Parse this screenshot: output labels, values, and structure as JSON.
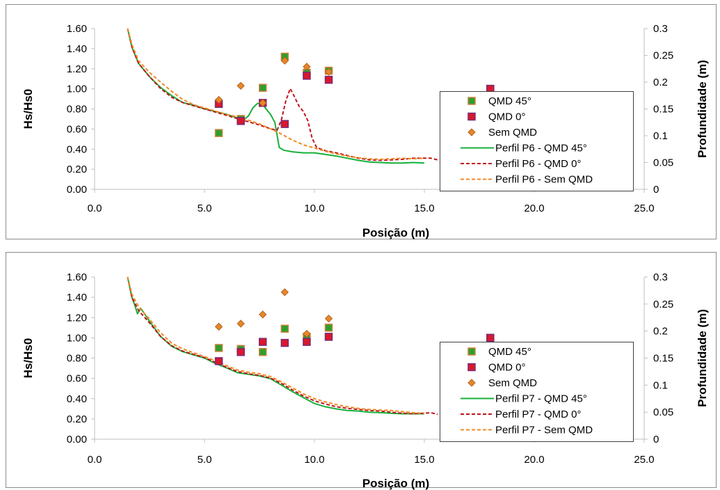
{
  "chart_data": [
    {
      "type": "scatter",
      "title": "",
      "xlabel": "Posição (m)",
      "ylabel": "Hs/Hs0",
      "y2label": "Profundidade (m)",
      "xlim": [
        0,
        25
      ],
      "ylim": [
        0,
        1.6
      ],
      "y2lim": [
        0,
        0.3
      ],
      "x_ticks": [
        "0.0",
        "5.0",
        "10.0",
        "15.0",
        "20.0",
        "25.0"
      ],
      "y_ticks": [
        "0.00",
        "0.20",
        "0.40",
        "0.60",
        "0.80",
        "1.00",
        "1.20",
        "1.40",
        "1.60"
      ],
      "y2_ticks": [
        "0",
        "0.05",
        "0.1",
        "0.15",
        "0.2",
        "0.25",
        "0.3"
      ],
      "grid": false,
      "legend_position": "right",
      "series": [
        {
          "name": "QMD 45°",
          "kind": "marker",
          "marker": "square",
          "color": "#2e9e2e",
          "edge": "#c9843a",
          "x": [
            5.65,
            6.65,
            7.65,
            8.65,
            9.65,
            10.65,
            18.0
          ],
          "y": [
            0.56,
            0.7,
            1.01,
            1.32,
            1.16,
            1.18,
            1.0
          ]
        },
        {
          "name": "QMD 0°",
          "kind": "marker",
          "marker": "square",
          "color": "#d9182b",
          "edge": "#7a2a78",
          "x": [
            5.65,
            6.65,
            7.65,
            8.65,
            9.65,
            10.65,
            18.0
          ],
          "y": [
            0.85,
            0.68,
            0.86,
            0.65,
            1.13,
            1.09,
            1.0
          ]
        },
        {
          "name": "Sem QMD",
          "kind": "marker",
          "marker": "diamond",
          "color": "#e8862a",
          "edge": "#b5651d",
          "x": [
            5.65,
            6.65,
            7.65,
            8.65,
            9.65,
            10.65
          ],
          "y": [
            0.89,
            1.03,
            0.86,
            1.28,
            1.22,
            1.17
          ]
        },
        {
          "name": "Perfil P6 - QMD 45°",
          "kind": "line",
          "dash": "solid",
          "color": "#16b03a",
          "x": [
            1.5,
            1.7,
            2.0,
            2.5,
            3.0,
            3.5,
            4.0,
            4.5,
            5.0,
            5.5,
            6.0,
            6.5,
            6.8,
            7.0,
            7.2,
            7.4,
            7.6,
            7.8,
            8.0,
            8.2,
            8.4,
            8.6,
            9.0,
            9.5,
            10.0,
            10.5,
            11.0,
            11.5,
            12.0,
            12.5,
            13.0,
            13.5,
            14.0,
            14.5,
            15.0
          ],
          "y": [
            0.3,
            0.265,
            0.235,
            0.21,
            0.19,
            0.175,
            0.162,
            0.157,
            0.15,
            0.145,
            0.14,
            0.133,
            0.13,
            0.137,
            0.152,
            0.16,
            0.161,
            0.15,
            0.14,
            0.125,
            0.078,
            0.073,
            0.07,
            0.068,
            0.068,
            0.065,
            0.062,
            0.058,
            0.054,
            0.051,
            0.05,
            0.049,
            0.049,
            0.05,
            0.049
          ]
        },
        {
          "name": "Perfil P6 - QMD 0°",
          "kind": "line",
          "dash": "dashed",
          "color": "#c0141c",
          "x": [
            1.5,
            1.7,
            2.0,
            2.5,
            3.0,
            3.5,
            4.0,
            4.5,
            5.0,
            5.5,
            6.0,
            6.5,
            7.0,
            7.5,
            8.0,
            8.3,
            8.5,
            8.7,
            8.9,
            9.1,
            9.3,
            9.5,
            9.7,
            9.9,
            10.1,
            10.5,
            11.0,
            11.5,
            12.0,
            12.5,
            13.0,
            13.5,
            14.0,
            14.5,
            15.0,
            15.3,
            15.6
          ],
          "y": [
            0.3,
            0.265,
            0.235,
            0.21,
            0.188,
            0.172,
            0.162,
            0.156,
            0.15,
            0.144,
            0.138,
            0.132,
            0.126,
            0.12,
            0.113,
            0.11,
            0.13,
            0.165,
            0.188,
            0.172,
            0.155,
            0.145,
            0.128,
            0.095,
            0.078,
            0.072,
            0.068,
            0.063,
            0.058,
            0.055,
            0.054,
            0.055,
            0.056,
            0.058,
            0.058,
            0.058,
            0.055
          ]
        },
        {
          "name": "Perfil P6 - Sem QMD",
          "kind": "line",
          "dash": "dashed",
          "color": "#f08a24",
          "x": [
            1.5,
            1.7,
            2.0,
            2.5,
            3.0,
            3.5,
            4.0,
            4.5,
            5.0,
            5.5,
            6.0,
            6.5,
            7.0,
            7.5,
            8.0,
            8.5,
            9.0,
            9.5,
            10.0,
            10.5,
            11.0,
            11.5,
            12.0,
            12.5,
            13.0,
            13.5,
            14.0,
            14.5,
            15.0
          ],
          "y": [
            0.3,
            0.27,
            0.24,
            0.218,
            0.2,
            0.183,
            0.168,
            0.158,
            0.152,
            0.146,
            0.14,
            0.135,
            0.129,
            0.122,
            0.113,
            0.103,
            0.092,
            0.083,
            0.077,
            0.071,
            0.066,
            0.062,
            0.059,
            0.057,
            0.056,
            0.057,
            0.058,
            0.057,
            0.058
          ]
        }
      ]
    },
    {
      "type": "scatter",
      "title": "",
      "xlabel": "Posição (m)",
      "ylabel": "Hs/Hs0",
      "y2label": "Profundidade (m)",
      "xlim": [
        0,
        25
      ],
      "ylim": [
        0,
        1.6
      ],
      "y2lim": [
        0,
        0.3
      ],
      "x_ticks": [
        "0.0",
        "5.0",
        "10.0",
        "15.0",
        "20.0",
        "25.0"
      ],
      "y_ticks": [
        "0.00",
        "0.20",
        "0.40",
        "0.60",
        "0.80",
        "1.00",
        "1.20",
        "1.40",
        "1.60"
      ],
      "y2_ticks": [
        "0",
        "0.05",
        "0.1",
        "0.15",
        "0.2",
        "0.25",
        "0.3"
      ],
      "grid": false,
      "legend_position": "right",
      "series": [
        {
          "name": "QMD 45°",
          "kind": "marker",
          "marker": "square",
          "color": "#2e9e2e",
          "edge": "#c9843a",
          "x": [
            5.65,
            6.65,
            7.65,
            8.65,
            9.65,
            10.65,
            18.0
          ],
          "y": [
            0.9,
            0.89,
            0.86,
            1.09,
            1.01,
            1.1,
            1.0
          ]
        },
        {
          "name": "QMD 0°",
          "kind": "marker",
          "marker": "square",
          "color": "#d9182b",
          "edge": "#7a2a78",
          "x": [
            5.65,
            6.65,
            7.65,
            8.65,
            9.65,
            10.65,
            18.0
          ],
          "y": [
            0.77,
            0.86,
            0.96,
            0.95,
            0.96,
            1.01,
            1.0
          ]
        },
        {
          "name": "Sem QMD",
          "kind": "marker",
          "marker": "diamond",
          "color": "#e8862a",
          "edge": "#b5651d",
          "x": [
            5.65,
            6.65,
            7.65,
            8.65,
            9.65,
            10.65
          ],
          "y": [
            1.11,
            1.14,
            1.23,
            1.45,
            1.04,
            1.19
          ]
        },
        {
          "name": "Perfil P7 - QMD 45°",
          "kind": "line",
          "dash": "solid",
          "color": "#16b03a",
          "x": [
            1.5,
            1.7,
            1.85,
            1.95,
            2.1,
            2.5,
            3.0,
            3.5,
            4.0,
            4.5,
            5.0,
            5.5,
            6.0,
            6.5,
            7.0,
            7.5,
            8.0,
            8.5,
            9.0,
            9.5,
            10.0,
            10.5,
            11.0,
            11.5,
            12.0,
            12.5,
            13.0,
            13.5,
            14.0,
            14.5,
            15.0
          ],
          "y": [
            0.3,
            0.262,
            0.245,
            0.232,
            0.242,
            0.218,
            0.19,
            0.172,
            0.162,
            0.156,
            0.15,
            0.14,
            0.132,
            0.123,
            0.12,
            0.117,
            0.112,
            0.1,
            0.088,
            0.077,
            0.066,
            0.06,
            0.056,
            0.053,
            0.052,
            0.05,
            0.049,
            0.048,
            0.047,
            0.047,
            0.047
          ]
        },
        {
          "name": "Perfil P7 - QMD 0°",
          "kind": "line",
          "dash": "dashed",
          "color": "#c0141c",
          "x": [
            1.5,
            1.7,
            2.0,
            2.5,
            3.0,
            3.5,
            4.0,
            4.5,
            5.0,
            5.5,
            6.0,
            6.5,
            7.0,
            7.5,
            8.0,
            8.5,
            9.0,
            9.5,
            10.0,
            10.5,
            11.0,
            11.5,
            12.0,
            12.5,
            13.0,
            13.5,
            14.0,
            14.5,
            15.0,
            15.3,
            15.6
          ],
          "y": [
            0.3,
            0.262,
            0.238,
            0.215,
            0.19,
            0.173,
            0.163,
            0.157,
            0.151,
            0.142,
            0.133,
            0.125,
            0.121,
            0.118,
            0.113,
            0.103,
            0.091,
            0.08,
            0.071,
            0.065,
            0.06,
            0.057,
            0.055,
            0.053,
            0.052,
            0.05,
            0.048,
            0.047,
            0.048,
            0.049,
            0.046
          ]
        },
        {
          "name": "Perfil P7 - Sem QMD",
          "kind": "line",
          "dash": "dashed",
          "color": "#f08a24",
          "x": [
            1.5,
            1.7,
            2.0,
            2.5,
            3.0,
            3.5,
            4.0,
            4.5,
            5.0,
            5.5,
            6.0,
            6.5,
            7.0,
            7.5,
            8.0,
            8.5,
            9.0,
            9.5,
            10.0,
            10.5,
            11.0,
            11.5,
            12.0,
            12.5,
            13.0,
            13.5,
            14.0,
            14.5,
            15.0
          ],
          "y": [
            0.3,
            0.268,
            0.245,
            0.222,
            0.197,
            0.178,
            0.167,
            0.16,
            0.153,
            0.145,
            0.136,
            0.128,
            0.124,
            0.121,
            0.116,
            0.106,
            0.095,
            0.084,
            0.075,
            0.069,
            0.064,
            0.06,
            0.057,
            0.055,
            0.054,
            0.053,
            0.051,
            0.049,
            0.048
          ]
        }
      ]
    }
  ]
}
